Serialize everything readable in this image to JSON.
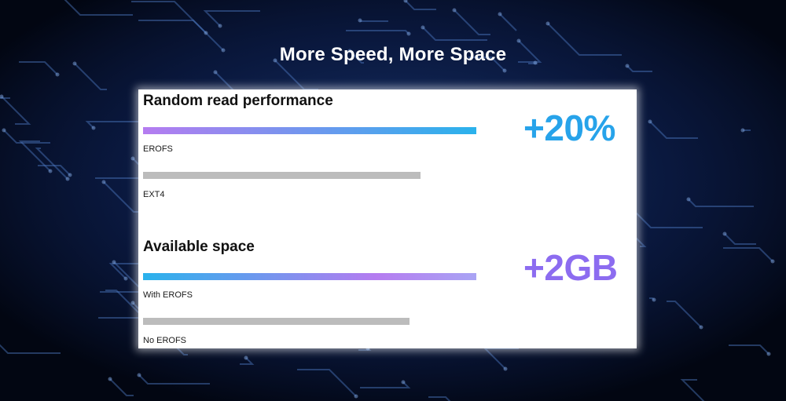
{
  "page": {
    "title": "More Speed, More Space"
  },
  "colors": {
    "gradient_purple": "#b57cf0",
    "gradient_blue": "#2ab2ec",
    "gradient_lavender": "#a9a4f4",
    "baseline_gray": "#bcbcbc",
    "highlight_speed": "#27a3ea",
    "highlight_space": "#8c6cf0"
  },
  "chart_data": [
    {
      "type": "bar",
      "orientation": "horizontal",
      "title": "Random read performance",
      "categories": [
        "EROFS",
        "EXT4"
      ],
      "values": [
        1.2,
        1.0
      ],
      "highlight": "+20%",
      "grid": false
    },
    {
      "type": "bar",
      "orientation": "horizontal",
      "title": "Available space",
      "categories": [
        "With EROFS",
        "No EROFS"
      ],
      "values": [
        1.25,
        1.0
      ],
      "highlight": "+2GB",
      "grid": false
    }
  ]
}
